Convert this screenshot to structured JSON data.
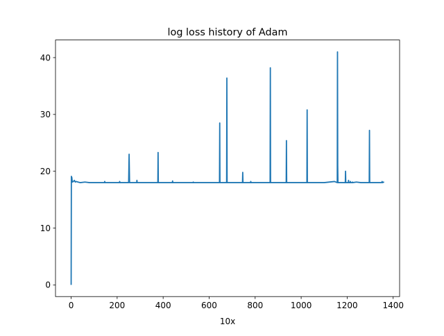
{
  "chart_data": {
    "type": "line",
    "title": "log loss history of Adam",
    "xlabel": "10x",
    "ylabel": "",
    "xlim": [
      -68,
      1428
    ],
    "ylim": [
      -2.05,
      43.1
    ],
    "xticks": [
      0,
      200,
      400,
      600,
      800,
      1000,
      1200,
      1400
    ],
    "yticks": [
      0,
      10,
      20,
      30,
      40
    ],
    "grid": false,
    "legend": "none",
    "series_color": "#1f77b4",
    "baseline": 18.0,
    "series": [
      {
        "x": [
          0,
          1,
          3,
          5,
          10,
          14,
          18,
          22,
          30,
          40,
          60,
          80,
          100,
          145,
          146,
          147,
          210,
          211,
          212,
          250,
          252,
          254,
          256,
          285,
          286,
          287,
          330,
          377,
          378,
          379,
          381,
          440,
          441,
          442,
          530,
          531,
          532,
          600,
          645,
          646,
          647,
          649,
          676,
          677,
          678,
          680,
          745,
          746,
          747,
          749,
          780,
          781,
          782,
          865,
          866,
          867,
          869,
          935,
          936,
          937,
          939,
          1025,
          1026,
          1027,
          1029,
          1100,
          1145,
          1157,
          1158,
          1159,
          1160,
          1162,
          1192,
          1193,
          1194,
          1196,
          1205,
          1206,
          1207,
          1213,
          1214,
          1215,
          1222,
          1223,
          1224,
          1240,
          1260,
          1296,
          1297,
          1298,
          1300,
          1330,
          1350,
          1352,
          1354,
          1358,
          1360
        ],
        "y": [
          0.0,
          19.1,
          18.9,
          18.1,
          18.2,
          18.4,
          18.1,
          18.2,
          18.1,
          18.0,
          18.1,
          18.0,
          18.0,
          18.0,
          18.2,
          18.0,
          18.0,
          18.2,
          18.0,
          18.0,
          23.0,
          18.0,
          18.0,
          18.0,
          18.4,
          18.0,
          18.0,
          18.0,
          23.3,
          18.0,
          18.0,
          18.0,
          18.3,
          18.0,
          18.0,
          18.1,
          18.0,
          18.0,
          18.0,
          28.5,
          18.0,
          18.0,
          18.0,
          36.4,
          18.0,
          18.0,
          18.0,
          19.8,
          18.0,
          18.0,
          18.0,
          18.2,
          18.0,
          18.0,
          38.2,
          18.0,
          18.0,
          18.0,
          25.4,
          18.0,
          18.0,
          18.0,
          30.8,
          18.0,
          18.0,
          18.0,
          18.2,
          18.0,
          41.0,
          21.0,
          18.0,
          18.0,
          18.0,
          20.0,
          18.0,
          18.0,
          18.0,
          18.4,
          18.0,
          18.0,
          18.2,
          18.0,
          18.0,
          18.1,
          18.0,
          18.1,
          18.0,
          18.0,
          27.2,
          18.0,
          18.0,
          18.0,
          18.0,
          18.2,
          18.0,
          18.1,
          18.0
        ]
      }
    ]
  }
}
